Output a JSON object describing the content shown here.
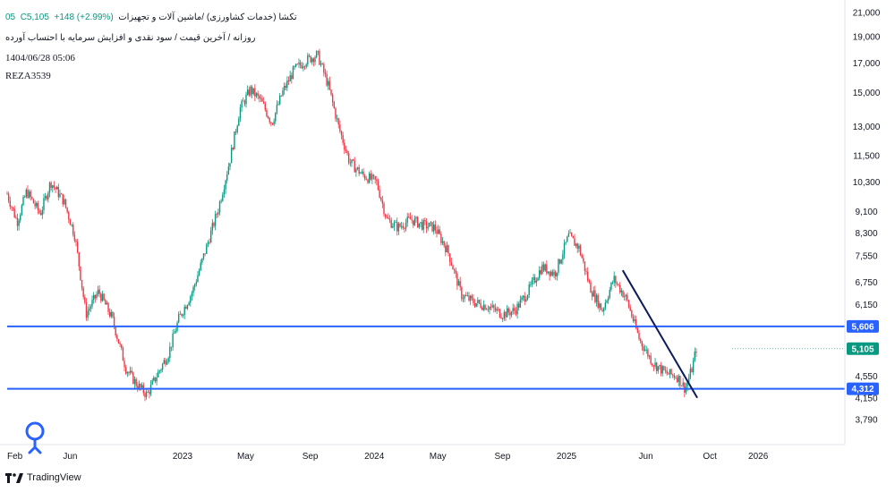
{
  "header": {
    "title": "تکشا (خدمات کشاورزی) /ماشین آلات و تجهیزات",
    "interval": "05",
    "close_label": "C5,105",
    "change": "+148 (+2.99%)",
    "subtitle": "روزانه / آخرین قیمت / سود نقدی و افزایش سرمایه با احتساب آورده",
    "timestamp": "1404/06/28 05:06",
    "username": "REZA3539"
  },
  "branding": {
    "label": "TradingView",
    "logo_icon": "tradingview-logo-icon",
    "badge_icon": "author-badge-icon"
  },
  "colors": {
    "up": "#089981",
    "down": "#f23645",
    "level": "#2962ff",
    "trend": "#0d1b5e",
    "price": "#089981"
  },
  "chart_data": {
    "type": "candlestick",
    "scale": "log",
    "ylim": [
      3500,
      21500
    ],
    "y_ticks": [
      "21,000",
      "19,000",
      "17,000",
      "15,000",
      "13,000",
      "11,500",
      "10,300",
      "9,100",
      "8,300",
      "7,550",
      "6,750",
      "6,150",
      "5,606",
      "5,105",
      "4,550",
      "4,312",
      "4,150",
      "3,790"
    ],
    "x_ticks": [
      "Feb",
      "Jun",
      "2023",
      "May",
      "Sep",
      "2024",
      "May",
      "Sep",
      "2025",
      "Jun",
      "Oct",
      "2026"
    ],
    "x_range": [
      "2022-02-01",
      "2026-06-15"
    ],
    "price_path": [
      [
        "2022-02-01",
        9800
      ],
      [
        "2022-02-20",
        8700
      ],
      [
        "2022-03-10",
        9900
      ],
      [
        "2022-04-05",
        9000
      ],
      [
        "2022-04-25",
        10300
      ],
      [
        "2022-05-20",
        9500
      ],
      [
        "2022-06-10",
        8200
      ],
      [
        "2022-07-01",
        5900
      ],
      [
        "2022-07-25",
        6500
      ],
      [
        "2022-08-20",
        5800
      ],
      [
        "2022-09-15",
        4700
      ],
      [
        "2022-10-05",
        4400
      ],
      [
        "2022-10-25",
        4200
      ],
      [
        "2022-11-15",
        4600
      ],
      [
        "2022-12-05",
        5000
      ],
      [
        "2022-12-25",
        5800
      ],
      [
        "2023-01-20",
        6500
      ],
      [
        "2023-02-15",
        7800
      ],
      [
        "2023-03-10",
        9200
      ],
      [
        "2023-04-01",
        11300
      ],
      [
        "2023-04-20",
        14000
      ],
      [
        "2023-05-10",
        15200
      ],
      [
        "2023-05-30",
        14500
      ],
      [
        "2023-06-20",
        13200
      ],
      [
        "2023-07-10",
        15000
      ],
      [
        "2023-08-01",
        16500
      ],
      [
        "2023-08-25",
        17200
      ],
      [
        "2023-09-15",
        17600
      ],
      [
        "2023-10-05",
        15500
      ],
      [
        "2023-10-25",
        13000
      ],
      [
        "2023-11-15",
        11200
      ],
      [
        "2023-12-10",
        10600
      ],
      [
        "2024-01-05",
        10300
      ],
      [
        "2024-01-25",
        8800
      ],
      [
        "2024-02-15",
        8500
      ],
      [
        "2024-03-10",
        8800
      ],
      [
        "2024-04-01",
        8600
      ],
      [
        "2024-04-25",
        8500
      ],
      [
        "2024-05-20",
        7700
      ],
      [
        "2024-06-15",
        6400
      ],
      [
        "2024-07-10",
        6200
      ],
      [
        "2024-08-05",
        6100
      ],
      [
        "2024-09-01",
        5900
      ],
      [
        "2024-09-25",
        6000
      ],
      [
        "2024-10-20",
        6500
      ],
      [
        "2024-11-15",
        7200
      ],
      [
        "2024-12-10",
        7000
      ],
      [
        "2025-01-05",
        8200
      ],
      [
        "2025-01-25",
        7800
      ],
      [
        "2025-02-15",
        6600
      ],
      [
        "2025-03-10",
        6000
      ],
      [
        "2025-04-01",
        6850
      ],
      [
        "2025-04-25",
        6300
      ],
      [
        "2025-05-20",
        5300
      ],
      [
        "2025-06-15",
        4800
      ],
      [
        "2025-07-10",
        4600
      ],
      [
        "2025-07-30",
        4550
      ],
      [
        "2025-08-15",
        4312
      ],
      [
        "2025-08-28",
        4700
      ],
      [
        "2025-09-05",
        5105
      ]
    ],
    "levels": [
      {
        "label": "5,606",
        "value": 5606
      },
      {
        "label": "4,312",
        "value": 4312
      }
    ],
    "trendline": {
      "start": [
        "2025-04-18",
        7100
      ],
      "end": [
        "2025-09-07",
        4150
      ]
    },
    "last_price": {
      "label": "5,105",
      "value": 5105
    }
  }
}
